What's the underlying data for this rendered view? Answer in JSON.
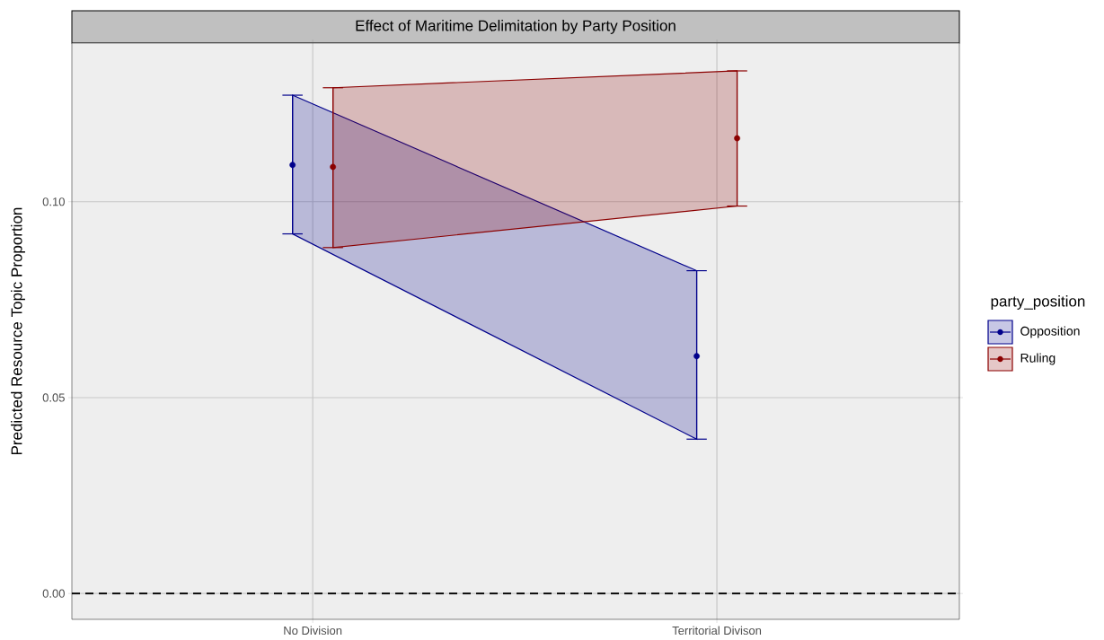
{
  "chart_data": {
    "type": "scatter",
    "title": "Effect of Maritime Delimitation by Party Position",
    "ylabel": "Predicted Resource Topic Proportion",
    "legend_title": "party_position",
    "categories": [
      "No Division",
      "Territorial Divison"
    ],
    "series": [
      {
        "name": "Opposition",
        "color": "#00008b",
        "values": [
          0.1094,
          0.0606
        ],
        "errors": [
          [
            0.0918,
            0.1272
          ],
          [
            0.0394,
            0.0824
          ]
        ],
        "lower": [
          0.0918,
          0.0394
        ],
        "upper": [
          0.1272,
          0.0824
        ]
      },
      {
        "name": "Ruling",
        "color": "#8b0000",
        "values": [
          0.1089,
          0.1162
        ],
        "errors": [
          [
            0.0883,
            0.1291
          ],
          [
            0.0989,
            0.1334
          ]
        ],
        "lower": [
          0.0883,
          0.0989
        ],
        "upper": [
          0.1291,
          0.1334
        ]
      }
    ],
    "ylim": [
      -0.0066,
      0.1405
    ],
    "yticks": [
      {
        "value": 0,
        "label": "0.00"
      },
      {
        "value": 0.05,
        "label": "0.05"
      },
      {
        "value": 0.1,
        "label": "0.10"
      }
    ],
    "ref_lines": [
      {
        "axis": "y",
        "value": 0,
        "label": null,
        "line_style": "dashed",
        "color": "#000000"
      }
    ],
    "grid": true,
    "legend": "right",
    "marker": "circle"
  }
}
